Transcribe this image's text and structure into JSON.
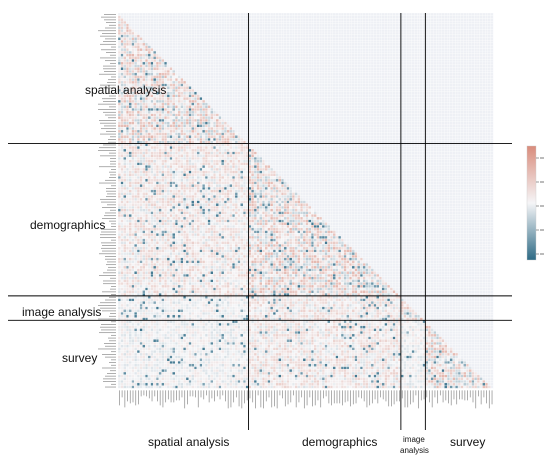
{
  "chart_data": {
    "type": "heatmap",
    "matrix_shape": "lower-triangular",
    "n_variables": 138,
    "groups": [
      {
        "name": "spatial analysis",
        "n": 48
      },
      {
        "name": "demographics",
        "n": 56
      },
      {
        "name": "image analysis",
        "n": 9
      },
      {
        "name": "survey",
        "n": 25
      }
    ],
    "y_group_labels": [
      "spatial analysis",
      "demographics",
      "image analysis",
      "survey"
    ],
    "x_group_labels": [
      "spatial analysis",
      "demographics",
      "image",
      "analysis",
      "survey"
    ],
    "colorbar": {
      "range": [
        -1,
        1
      ],
      "colors": {
        "negative": "#2d6a85",
        "zero": "#f5f5f7",
        "positive": "#d98c7c"
      }
    },
    "grid": true,
    "colors": {
      "empty_cell": "#eef0f5",
      "cell_border": "#ffffff",
      "separator": "#000000"
    }
  }
}
